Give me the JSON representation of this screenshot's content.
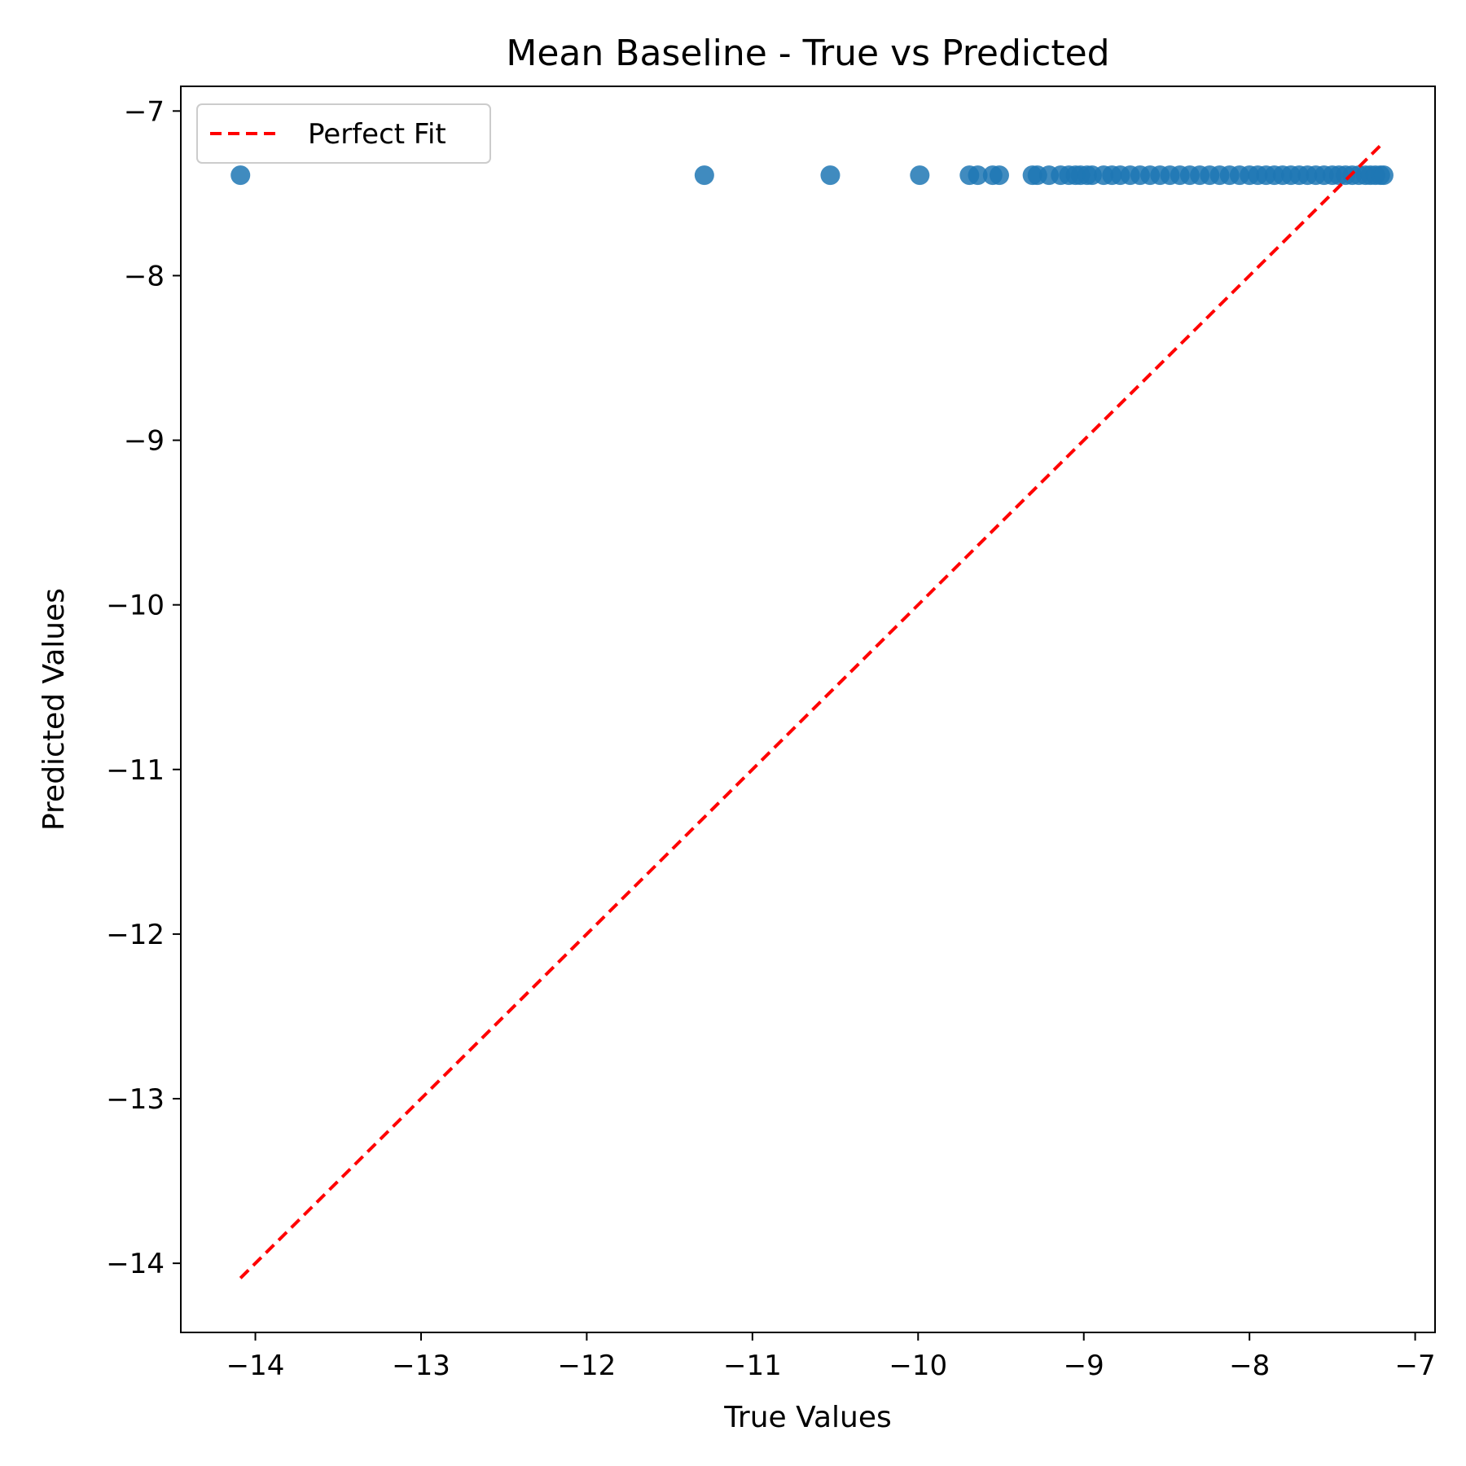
{
  "chart_data": {
    "type": "scatter",
    "title": "Mean Baseline - True vs Predicted",
    "xlabel": "True Values",
    "ylabel": "Predicted Values",
    "xlim": [
      -14.45,
      -6.88
    ],
    "ylim": [
      -14.42,
      -6.85
    ],
    "xticks": [
      -14,
      -13,
      -12,
      -11,
      -10,
      -9,
      -8,
      -7
    ],
    "yticks": [
      -14,
      -13,
      -12,
      -11,
      -10,
      -9,
      -8,
      -7
    ],
    "grid": false,
    "legend": {
      "position": "top-left",
      "entries": [
        "Perfect Fit"
      ]
    },
    "series": [
      {
        "kind": "scatter",
        "color": "#1f77b4",
        "points": [
          [
            -14.09,
            -7.39
          ],
          [
            -11.29,
            -7.39
          ],
          [
            -10.53,
            -7.39
          ],
          [
            -9.99,
            -7.39
          ],
          [
            -9.69,
            -7.39
          ],
          [
            -9.64,
            -7.39
          ],
          [
            -9.55,
            -7.39
          ],
          [
            -9.51,
            -7.39
          ],
          [
            -9.31,
            -7.39
          ],
          [
            -9.28,
            -7.39
          ],
          [
            -9.21,
            -7.39
          ],
          [
            -9.14,
            -7.39
          ],
          [
            -9.09,
            -7.39
          ],
          [
            -9.05,
            -7.39
          ],
          [
            -9.02,
            -7.39
          ],
          [
            -8.98,
            -7.39
          ],
          [
            -8.95,
            -7.39
          ],
          [
            -8.88,
            -7.39
          ],
          [
            -8.83,
            -7.39
          ],
          [
            -8.78,
            -7.39
          ],
          [
            -8.72,
            -7.39
          ],
          [
            -8.66,
            -7.39
          ],
          [
            -8.6,
            -7.39
          ],
          [
            -8.54,
            -7.39
          ],
          [
            -8.48,
            -7.39
          ],
          [
            -8.42,
            -7.39
          ],
          [
            -8.36,
            -7.39
          ],
          [
            -8.3,
            -7.39
          ],
          [
            -8.24,
            -7.39
          ],
          [
            -8.18,
            -7.39
          ],
          [
            -8.12,
            -7.39
          ],
          [
            -8.06,
            -7.39
          ],
          [
            -8.0,
            -7.39
          ],
          [
            -7.95,
            -7.39
          ],
          [
            -7.9,
            -7.39
          ],
          [
            -7.85,
            -7.39
          ],
          [
            -7.8,
            -7.39
          ],
          [
            -7.75,
            -7.39
          ],
          [
            -7.7,
            -7.39
          ],
          [
            -7.65,
            -7.39
          ],
          [
            -7.6,
            -7.39
          ],
          [
            -7.55,
            -7.39
          ],
          [
            -7.5,
            -7.39
          ],
          [
            -7.46,
            -7.39
          ],
          [
            -7.42,
            -7.39
          ],
          [
            -7.38,
            -7.39
          ],
          [
            -7.34,
            -7.39
          ],
          [
            -7.3,
            -7.39
          ],
          [
            -7.27,
            -7.39
          ],
          [
            -7.24,
            -7.39
          ],
          [
            -7.21,
            -7.39
          ],
          [
            -7.19,
            -7.39
          ]
        ]
      },
      {
        "kind": "line",
        "name": "Perfect Fit",
        "color": "#ff0000",
        "dashed": true,
        "points": [
          [
            -14.09,
            -14.09
          ],
          [
            -7.19,
            -7.19
          ]
        ]
      }
    ]
  }
}
